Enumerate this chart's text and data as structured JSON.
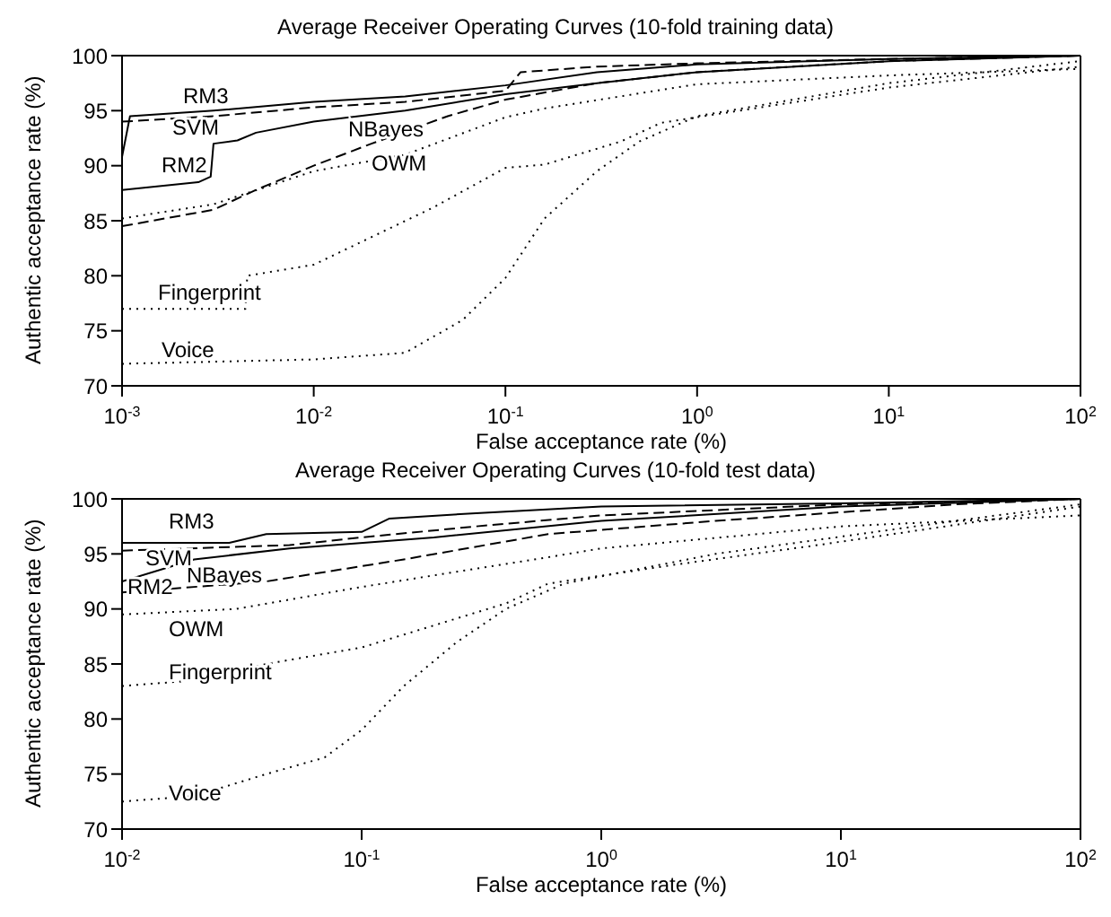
{
  "chart_data": [
    {
      "type": "line",
      "title": "Average Receiver Operating Curves (10-fold training data)",
      "xlabel": "False acceptance rate (%)",
      "ylabel": "Authentic acceptance rate (%)",
      "log": "x",
      "grid": false,
      "legend": false,
      "xlim": [
        0.001,
        100
      ],
      "xticks": [
        {
          "value": 0.001,
          "label": "10$^{-3}$"
        },
        {
          "value": 0.01,
          "label": "10$^{-2}$"
        },
        {
          "value": 0.1,
          "label": "10$^{-1}$"
        },
        {
          "value": 1,
          "label": "10$^{0}$"
        },
        {
          "value": 10,
          "label": "10$^{1}$"
        },
        {
          "value": 100,
          "label": "10$^{2}$"
        }
      ],
      "ylim": [
        70,
        100
      ],
      "yticks": [
        70,
        75,
        80,
        85,
        90,
        95,
        100
      ],
      "series": [
        {
          "name": "RM3",
          "color": "#000000",
          "line_style": "solid",
          "x": [
            0.001,
            0.0011,
            0.003,
            0.01,
            0.03,
            0.1,
            0.3,
            1,
            10,
            100
          ],
          "values": [
            90.8,
            94.5,
            95,
            95.8,
            96.3,
            97.3,
            98.5,
            99.2,
            99.7,
            100
          ]
        },
        {
          "name": "SVM",
          "color": "#000000",
          "line_style": "dashed",
          "x": [
            0.001,
            0.003,
            0.01,
            0.03,
            0.1,
            0.12,
            0.3,
            1,
            10,
            100
          ],
          "values": [
            94,
            94.5,
            95.3,
            95.8,
            96.8,
            98.5,
            99,
            99.3,
            99.7,
            100
          ]
        },
        {
          "name": "RM2",
          "color": "#000000",
          "line_style": "solid",
          "x": [
            0.001,
            0.0025,
            0.0029,
            0.003,
            0.004,
            0.005,
            0.01,
            0.03,
            0.1,
            0.3,
            1,
            10,
            100
          ],
          "values": [
            87.8,
            88.5,
            89,
            92,
            92.3,
            93,
            94,
            95,
            96.5,
            97.5,
            98.5,
            99.5,
            100
          ]
        },
        {
          "name": "NBayes",
          "color": "#000000",
          "line_style": "dashed",
          "x": [
            0.001,
            0.003,
            0.005,
            0.01,
            0.02,
            0.05,
            0.1,
            0.3,
            1,
            10,
            100
          ],
          "values": [
            84.5,
            86,
            87.8,
            90,
            92,
            94.5,
            96,
            97.5,
            98.5,
            99.5,
            100
          ]
        },
        {
          "name": "OWM",
          "color": "#000000",
          "line_style": "dotted",
          "x": [
            0.001,
            0.003,
            0.01,
            0.03,
            0.1,
            0.16,
            1,
            10,
            100
          ],
          "values": [
            85.2,
            86.5,
            89.5,
            91,
            94.4,
            95.2,
            97.4,
            98.2,
            98.8
          ]
        },
        {
          "name": "Fingerprint",
          "color": "#000000",
          "line_style": "dotted",
          "x": [
            0.001,
            0.0044,
            0.0045,
            0.01,
            0.042,
            0.1,
            0.16,
            0.4,
            0.65,
            10,
            100
          ],
          "values": [
            77,
            77,
            80,
            81,
            86.2,
            89.8,
            90.1,
            92.2,
            93.9,
            97.1,
            99
          ]
        },
        {
          "name": "Voice",
          "color": "#000000",
          "line_style": "dotted",
          "x": [
            0.001,
            0.01,
            0.03,
            0.06,
            0.1,
            0.16,
            0.3,
            0.5,
            1,
            10,
            100
          ],
          "values": [
            72,
            72.4,
            73,
            76,
            79.8,
            85.2,
            89.5,
            92.2,
            94.5,
            97.5,
            99.5
          ]
        }
      ]
    },
    {
      "type": "line",
      "title": "Average Receiver Operating Curves (10-fold test data)",
      "xlabel": "False acceptance rate (%)",
      "ylabel": "Authentic acceptance rate (%)",
      "log": "x",
      "grid": false,
      "legend": false,
      "xlim": [
        0.01,
        100
      ],
      "xticks": [
        {
          "value": 0.01,
          "label": "10$^{-2}$"
        },
        {
          "value": 0.1,
          "label": "10$^{-1}$"
        },
        {
          "value": 1,
          "label": "10$^{0}$"
        },
        {
          "value": 10,
          "label": "10$^{1}$"
        },
        {
          "value": 100,
          "label": "10$^{2}$"
        }
      ],
      "ylim": [
        70,
        100
      ],
      "yticks": [
        70,
        75,
        80,
        85,
        90,
        95,
        100
      ],
      "series": [
        {
          "name": "RM3",
          "color": "#000000",
          "line_style": "solid",
          "x": [
            0.01,
            0.028,
            0.04,
            0.1,
            0.13,
            0.3,
            1,
            10,
            100
          ],
          "values": [
            96,
            96,
            96.8,
            97,
            98.2,
            98.7,
            99.3,
            99.6,
            100
          ]
        },
        {
          "name": "SVM",
          "color": "#000000",
          "line_style": "dashed",
          "x": [
            0.01,
            0.05,
            0.1,
            0.3,
            1,
            10,
            100
          ],
          "values": [
            95.3,
            95.8,
            96.5,
            97.5,
            98.5,
            99.5,
            100
          ]
        },
        {
          "name": "RM2",
          "color": "#000000",
          "line_style": "solid",
          "x": [
            0.01,
            0.02,
            0.05,
            0.2,
            1,
            10,
            100
          ],
          "values": [
            92.5,
            94.5,
            95.5,
            96.5,
            98,
            99.3,
            100
          ]
        },
        {
          "name": "NBayes",
          "color": "#000000",
          "line_style": "dashed",
          "x": [
            0.01,
            0.04,
            0.15,
            0.6,
            3,
            30,
            100
          ],
          "values": [
            91.5,
            92.5,
            94.5,
            96.8,
            98,
            99.5,
            100
          ]
        },
        {
          "name": "OWM",
          "color": "#000000",
          "line_style": "dotted",
          "x": [
            0.01,
            0.03,
            0.1,
            0.6,
            1,
            10,
            100
          ],
          "values": [
            89.5,
            90,
            92,
            94.7,
            95.5,
            97.5,
            98.5
          ]
        },
        {
          "name": "Fingerprint",
          "color": "#000000",
          "line_style": "dotted",
          "x": [
            0.01,
            0.02,
            0.04,
            0.1,
            0.2,
            0.4,
            0.6,
            2,
            8,
            100
          ],
          "values": [
            83,
            83.5,
            85,
            86.5,
            88.5,
            90.5,
            92.3,
            94,
            95.8,
            99.3
          ]
        },
        {
          "name": "Voice",
          "color": "#000000",
          "line_style": "dotted",
          "x": [
            0.01,
            0.02,
            0.04,
            0.07,
            0.1,
            0.15,
            0.25,
            0.4,
            0.7,
            3,
            30,
            100
          ],
          "values": [
            72.5,
            73,
            75,
            76.5,
            79,
            83,
            87,
            90,
            92.3,
            95,
            98,
            99.5
          ]
        }
      ]
    }
  ]
}
